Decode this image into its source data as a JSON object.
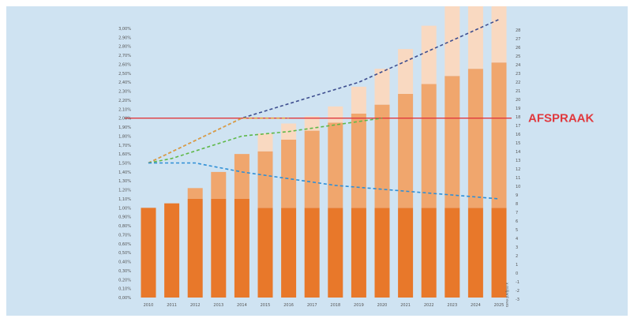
{
  "colors": {
    "background": "#cfe3f2",
    "bar_base": "#e8782a",
    "bar_mid": "#f0a66d",
    "bar_top": "#f9d9c1",
    "reference_line": "#e0393e",
    "line_dark_blue": "#3e4e8f",
    "line_orange": "#e8a13a",
    "line_green": "#5fb84a",
    "line_blue": "#2f8fd6"
  },
  "chart_data": {
    "type": "bar",
    "categories": [
      "2010",
      "2011",
      "2012",
      "2013",
      "2014",
      "2015",
      "2016",
      "2017",
      "2018",
      "2019",
      "2020",
      "2021",
      "2022",
      "2023",
      "2024",
      "2025"
    ],
    "stacked": true,
    "series": [
      {
        "values": [
          1.0,
          1.05,
          1.1,
          1.1,
          1.1,
          1.0,
          1.0,
          1.0,
          1.0,
          1.0,
          1.0,
          1.0,
          1.0,
          1.0,
          1.0,
          1.0
        ]
      },
      {
        "values": [
          0.0,
          0.0,
          0.12,
          0.3,
          0.5,
          0.63,
          0.76,
          0.86,
          0.95,
          1.05,
          1.15,
          1.27,
          1.38,
          1.47,
          1.55,
          1.62
        ]
      },
      {
        "values": [
          0.0,
          0.0,
          0.0,
          0.0,
          0.0,
          0.2,
          0.18,
          0.16,
          0.18,
          0.3,
          0.4,
          0.5,
          0.65,
          0.8,
          1.0,
          1.18
        ]
      }
    ],
    "lines": [
      {
        "style": "dashed",
        "color_key": "line_dark_blue",
        "x": [
          2010,
          2014,
          2019,
          2025
        ],
        "values": [
          1.5,
          2.0,
          2.4,
          3.1
        ]
      },
      {
        "style": "dashed",
        "color_key": "line_orange",
        "x": [
          2010,
          2014,
          2016
        ],
        "values": [
          1.5,
          2.0,
          2.0
        ]
      },
      {
        "style": "dashed",
        "color_key": "line_green",
        "x": [
          2010,
          2011,
          2014,
          2016,
          2020
        ],
        "values": [
          1.5,
          1.55,
          1.8,
          1.85,
          2.0
        ]
      },
      {
        "style": "dashed",
        "color_key": "line_blue",
        "x": [
          2010,
          2012,
          2014,
          2018,
          2025
        ],
        "values": [
          1.5,
          1.5,
          1.4,
          1.25,
          1.1
        ]
      }
    ],
    "reference_line": {
      "value": 2.0,
      "label": "AFSPRAAK"
    },
    "ylim": [
      0,
      3.0
    ],
    "y_ticks": [
      "0,00%",
      "0,10%",
      "0,20%",
      "0,30%",
      "0,40%",
      "0,50%",
      "0,60%",
      "0,70%",
      "0,80%",
      "0,90%",
      "1,00%",
      "1,10%",
      "1,20%",
      "1,30%",
      "1,40%",
      "1,50%",
      "1,60%",
      "1,70%",
      "1,80%",
      "1,90%",
      "2,00%",
      "2,10%",
      "2,20%",
      "2,30%",
      "2,40%",
      "2,50%",
      "2,60%",
      "2,70%",
      "2,80%",
      "2,90%",
      "3,00%"
    ],
    "y2_ticks": [
      "28",
      "27",
      "26",
      "25",
      "24",
      "23",
      "22",
      "21",
      "20",
      "19",
      "18",
      "17",
      "16",
      "15",
      "14",
      "13",
      "12",
      "11",
      "10",
      "9",
      "8",
      "7",
      "6",
      "5",
      "4",
      "3",
      "2",
      "1",
      "0",
      "-1",
      "-2",
      "-3"
    ],
    "y2_label": "x miljard euro"
  }
}
